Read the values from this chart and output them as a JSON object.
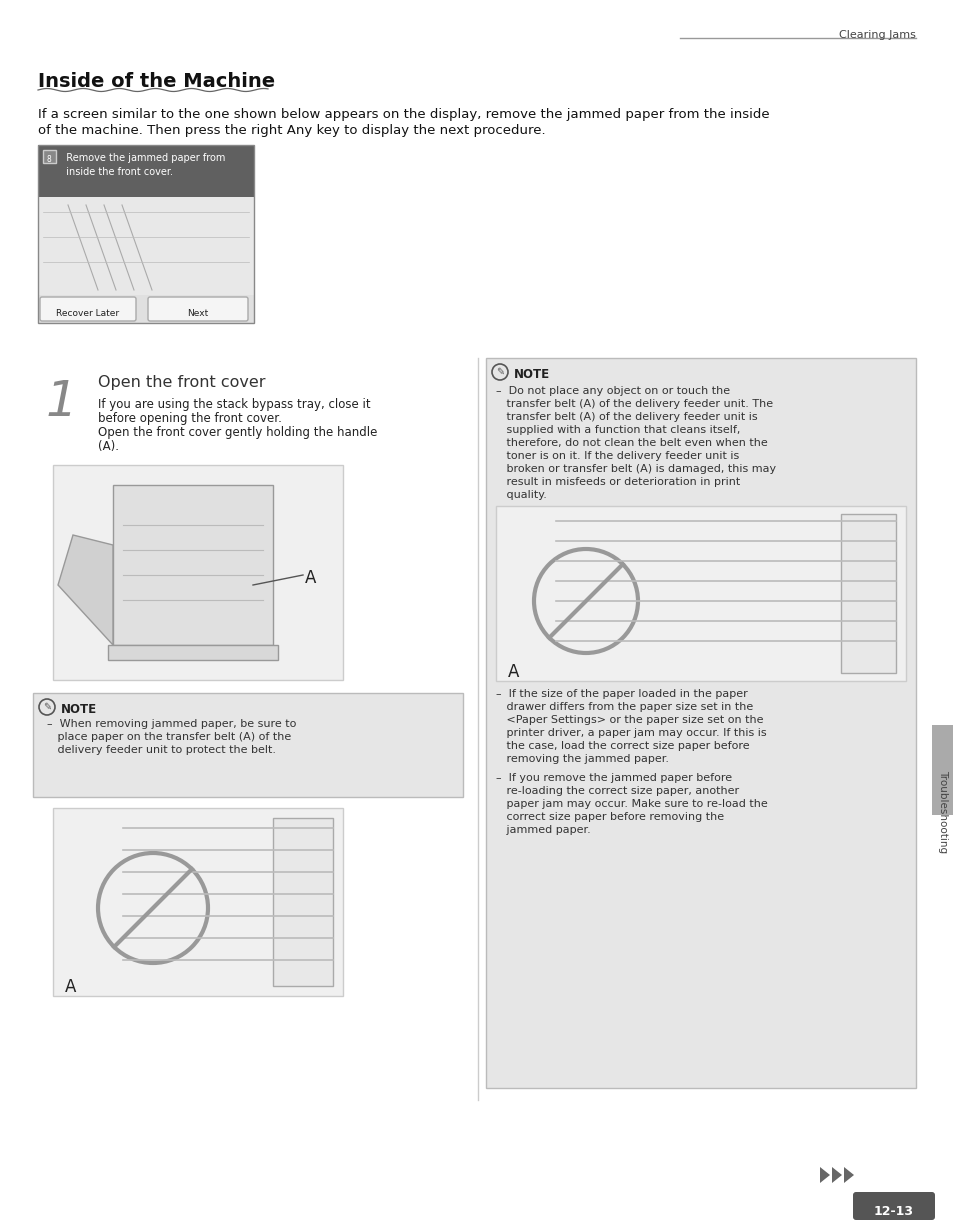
{
  "page_bg": "#ffffff",
  "header_text": "Clearing Jams",
  "title": "Inside of the Machine",
  "intro_text_l1": "If a screen similar to the one shown below appears on the display, remove the jammed paper from the inside",
  "intro_text_l2": "of the machine. Then press the right Any key to display the next procedure.",
  "step1_header": "Open the front cover",
  "step1_body_l1": "If you are using the stack bypass tray, close it",
  "step1_body_l2": "before opening the front cover.",
  "step1_body_l3": "Open the front cover gently holding the handle",
  "step1_body_l4": "(A).",
  "screen_hdr_l1": "  Remove the jammed paper from",
  "screen_hdr_l2": "  inside the front cover.",
  "screen_btn1": "Recover Later",
  "screen_btn2": "Next",
  "note1_title": "NOTE",
  "note1_line1": "–  When removing jammed paper, be sure to",
  "note1_line2": "   place paper on the transfer belt (A) of the",
  "note1_line3": "   delivery feeder unit to protect the belt.",
  "note2_title": "NOTE",
  "note2_l1": "–  Do not place any object on or touch the",
  "note2_l2": "   transfer belt (A) of the delivery feeder unit. The",
  "note2_l3": "   transfer belt (A) of the delivery feeder unit is",
  "note2_l4": "   supplied with a function that cleans itself,",
  "note2_l5": "   therefore, do not clean the belt even when the",
  "note2_l6": "   toner is on it. If the delivery feeder unit is",
  "note2_l7": "   broken or transfer belt (A) is damaged, this may",
  "note2_l8": "   result in misfeeds or deterioration in print",
  "note2_l9": "   quality.",
  "note2_b2_l1": "–  If the size of the paper loaded in the paper",
  "note2_b2_l2": "   drawer differs from the paper size set in the",
  "note2_b2_l3": "   <Paper Settings> or the paper size set on the",
  "note2_b2_l4": "   printer driver, a paper jam may occur. If this is",
  "note2_b2_l5": "   the case, load the correct size paper before",
  "note2_b2_l6": "   removing the jammed paper.",
  "note2_b3_l1": "–  If you remove the jammed paper before",
  "note2_b3_l2": "   re-loading the correct size paper, another",
  "note2_b3_l3": "   paper jam may occur. Make sure to re-load the",
  "note2_b3_l4": "   correct size paper before removing the",
  "note2_b3_l5": "   jammed paper.",
  "sidebar_text": "Troubleshooting",
  "page_num": "12-13",
  "note_bg": "#e6e6e6",
  "img_bg": "#f0f0f0",
  "img_border": "#cccccc",
  "screen_hdr_bg": "#606060",
  "screen_body_bg": "#e8e8e8",
  "btn_bg": "#f5f5f5",
  "btn_border": "#aaaaaa"
}
